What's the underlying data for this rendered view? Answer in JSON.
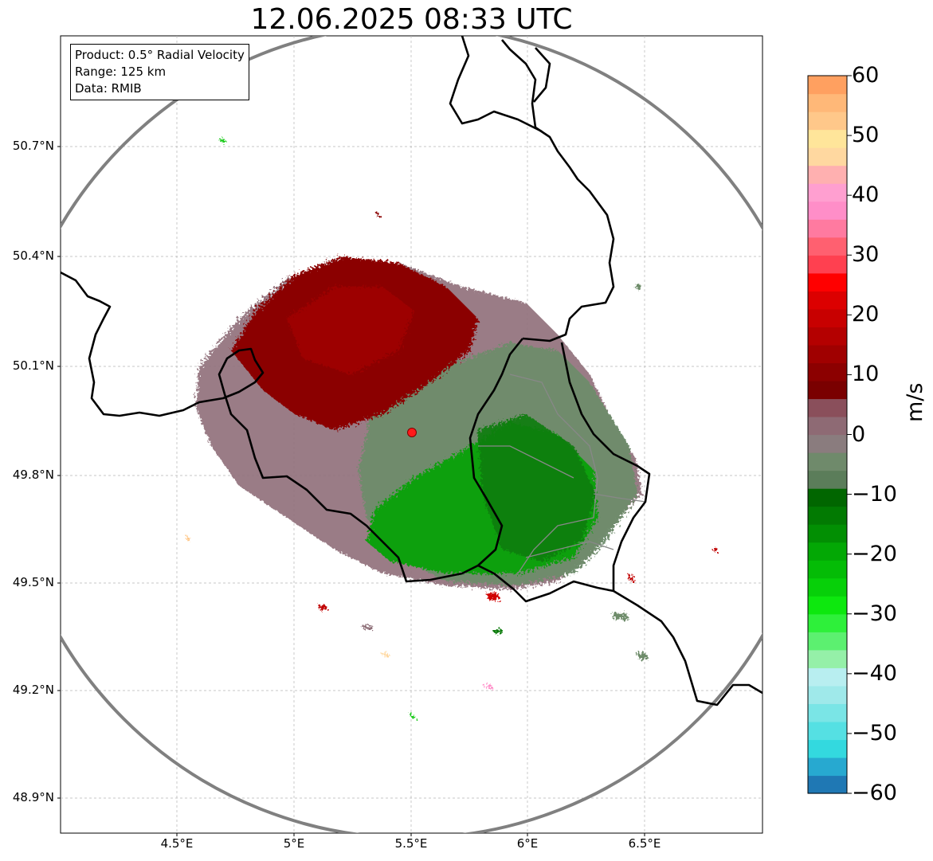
{
  "title": "12.06.2025 08:33 UTC",
  "info": {
    "product": "Product: 0.5° Radial Velocity",
    "range": "Range: 125 km",
    "data_source": "Data: RMIB"
  },
  "axes": {
    "x_ticks": [
      "4.5°E",
      "5°E",
      "5.5°E",
      "6°E",
      "6.5°E"
    ],
    "y_ticks": [
      "50.7°N",
      "50.4°N",
      "50.1°N",
      "49.8°N",
      "49.5°N",
      "49.2°N",
      "48.9°N"
    ]
  },
  "colorbar": {
    "unit": "m/s",
    "tick_labels": [
      "60",
      "50",
      "40",
      "30",
      "20",
      "10",
      "0",
      "−10",
      "−20",
      "−30",
      "−40",
      "−50",
      "−60"
    ],
    "min": -60,
    "max": 60,
    "colors": [
      "#1f78b4",
      "#27a9d0",
      "#33d9df",
      "#55e0e3",
      "#7ae5e6",
      "#9fe9ea",
      "#b8eef0",
      "#95f0a8",
      "#5cf070",
      "#2ef03a",
      "#0de80e",
      "#07d009",
      "#04bc06",
      "#03a805",
      "#028f03",
      "#027a02",
      "#016600",
      "#5b7d5a",
      "#6f8a6b",
      "#8a7c7e",
      "#8e6a74",
      "#8a4f5b",
      "#7a0000",
      "#8c0000",
      "#a00000",
      "#b40000",
      "#c80000",
      "#dc0000",
      "#ff0000",
      "#ff4050",
      "#ff6070",
      "#ff7aa0",
      "#ff8ec8",
      "#ff9fd0",
      "#ffb0b0",
      "#ffd8a0",
      "#ffe59a",
      "#ffc88a",
      "#ffb878",
      "#ffa060"
    ],
    "accent_title_color": "#000000"
  },
  "radar_site": {
    "color": "#ff1a1a"
  },
  "echo_colors": {
    "inbound_dark_red": "#8b0000",
    "mauve": "#8a6d76",
    "gray_green": "#6d8a6a",
    "green": "#06a407",
    "dark_green": "#0a7a0a"
  }
}
